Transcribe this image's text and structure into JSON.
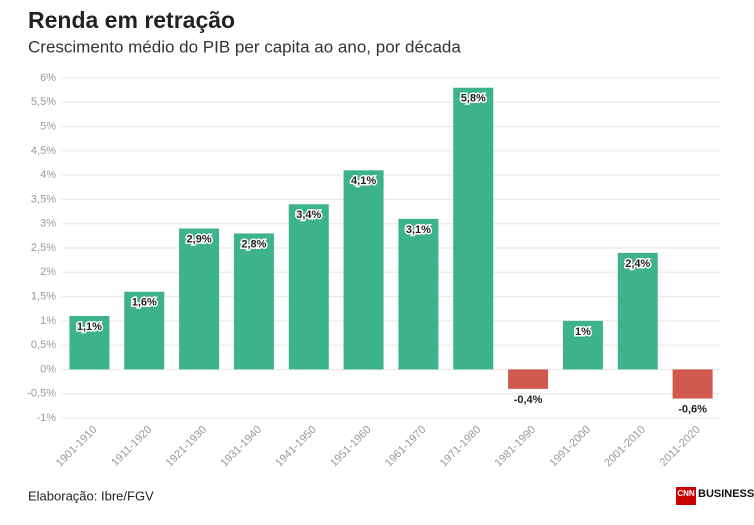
{
  "chart_data": {
    "type": "bar",
    "title": "Renda em retração",
    "subtitle": "Crescimento médio do PIB per capita ao ano, por década",
    "source": "Elaboração: Ibre/FGV",
    "logo": {
      "brand": "CNN",
      "section": "BUSINESS."
    },
    "categories": [
      "1901-1910",
      "1911-1920",
      "1921-1930",
      "1931-1940",
      "1941-1950",
      "1951-1960",
      "1961-1970",
      "1971-1980",
      "1981-1990",
      "1991-2000",
      "2001-2010",
      "2011-2020"
    ],
    "values": [
      1.1,
      1.6,
      2.9,
      2.8,
      3.4,
      4.1,
      3.1,
      5.8,
      -0.4,
      1,
      2.4,
      -0.6
    ],
    "value_labels": [
      "1,1%",
      "1,6%",
      "2,9%",
      "2,8%",
      "3,4%",
      "4,1%",
      "3,1%",
      "5,8%",
      "-0,4%",
      "1%",
      "2,4%",
      "-0,6%"
    ],
    "color": "#3db389",
    "negative_color": "#d05a50",
    "ylim": [
      -1,
      6
    ],
    "yticks": [
      {
        "value": 6,
        "label": "6%"
      },
      {
        "value": 5.5,
        "label": "5,5%"
      },
      {
        "value": 5,
        "label": "5%"
      },
      {
        "value": 4.5,
        "label": "4,5%"
      },
      {
        "value": 4,
        "label": "4%"
      },
      {
        "value": 3.5,
        "label": "3,5%"
      },
      {
        "value": 3,
        "label": "3%"
      },
      {
        "value": 2.5,
        "label": "2,5%"
      },
      {
        "value": 2,
        "label": "2%"
      },
      {
        "value": 1.5,
        "label": "1,5%"
      },
      {
        "value": 1,
        "label": "1%"
      },
      {
        "value": 0.5,
        "label": "0,5%"
      },
      {
        "value": 0,
        "label": "0%"
      },
      {
        "value": -0.5,
        "label": "-0,5%"
      },
      {
        "value": -1,
        "label": "-1%"
      }
    ],
    "grid": true
  }
}
